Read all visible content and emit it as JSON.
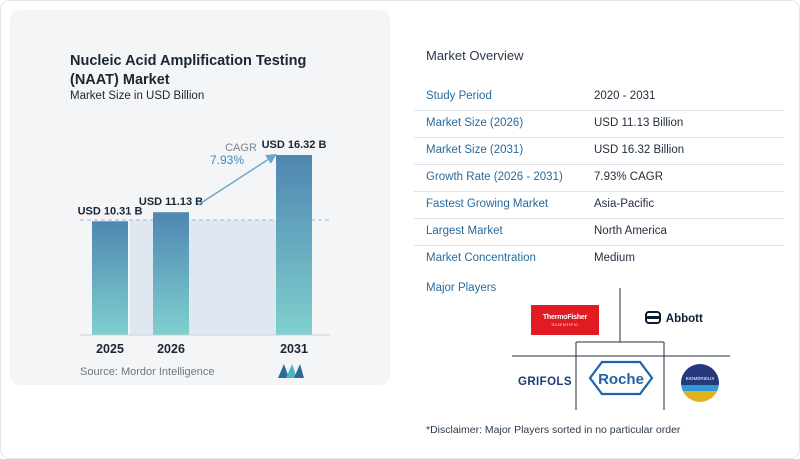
{
  "chart_data": {
    "type": "bar",
    "title": "Nucleic Acid Amplification Testing (NAAT) Market",
    "subtitle": "Market Size in USD Billion",
    "categories": [
      "2025",
      "2026",
      "2031"
    ],
    "values": [
      10.31,
      11.13,
      16.32
    ],
    "data_labels": [
      "USD 10.31 B",
      "USD 11.13 B",
      "USD 16.32 B"
    ],
    "cagr_label": "CAGR",
    "cagr_value": "7.93%",
    "grid": false,
    "colors": {
      "bar_top": "#4f86b1",
      "bar_bottom": "#7fd0cf",
      "shade": "#dfe8f0",
      "arrow": "#6ea8c9"
    }
  },
  "source": "Source:  Mordor Intelligence",
  "overview": {
    "title": "Market Overview",
    "rows": [
      {
        "label": "Study Period",
        "value": "2020 - 2031"
      },
      {
        "label": "Market Size (2026)",
        "value": "USD 11.13 Billion"
      },
      {
        "label": "Market Size (2031)",
        "value": "USD 16.32 Billion"
      },
      {
        "label": "Growth Rate (2026 - 2031)",
        "value": "7.93% CAGR"
      },
      {
        "label": "Fastest Growing Market",
        "value": "Asia-Pacific"
      },
      {
        "label": "Largest Market",
        "value": "North America"
      },
      {
        "label": "Market Concentration",
        "value": "Medium"
      }
    ]
  },
  "players": {
    "title": "Major Players",
    "logos": {
      "thermo_line1": "ThermoFisher",
      "thermo_line2": "SCIENTIFIC",
      "abbott": "Abbott",
      "grifols": "GRIFOLS",
      "roche": "Roche",
      "biomerieux": "BIOMÉRIEUX"
    }
  },
  "disclaimer": "*Disclaimer: Major Players sorted in no particular order"
}
